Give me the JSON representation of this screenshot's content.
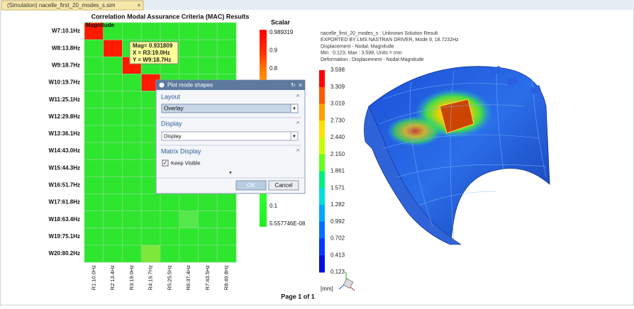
{
  "tab": {
    "title": "(Simulation) nacelle_first_20_modes_s.sim"
  },
  "mac_plot": {
    "title": "Correlation Modal Assurance Criteria (MAC) Results",
    "magnitude_label": "Magnitude",
    "rows": [
      "W7:10.1Hz",
      "W8:13.8Hz",
      "W9:18.7Hz",
      "W10:19.7Hz",
      "W11:25.1Hz",
      "W12:29.8Hz",
      "W13:36.1Hz",
      "W14:43.0Hz",
      "W15:44.3Hz",
      "W16:51.7Hz",
      "W17:61.8Hz",
      "W18:63.4Hz",
      "W19:75.1Hz",
      "W20:80.2Hz"
    ],
    "columns": [
      "R1:10.0Hz",
      "R2:13.4Hz",
      "R3:19.0Hz",
      "R4:19.7Hz",
      "R5:25.5Hz",
      "R6:37.4Hz",
      "R7:43.5Hz",
      "R8:49.8Hz"
    ],
    "tooltip": [
      "Mag= 0.931809",
      "X = R3:19.0Hz",
      "Y = W9:18.7Hz"
    ],
    "scale": {
      "title": "Scalar",
      "top_labels": [
        "0.989319",
        "0.9",
        "0.8"
      ],
      "bottom_labels": [
        "0.1",
        "5.557746E-08"
      ]
    }
  },
  "dialog": {
    "title": "Plot mode shapes",
    "layout": {
      "label": "Layout",
      "value": "Overlay"
    },
    "display": {
      "label": "Display",
      "value": "Display"
    },
    "matrix_display": {
      "label": "Matrix Display",
      "checkbox": "Keep Visible"
    },
    "ok": "OK",
    "cancel": "Cancel"
  },
  "result": {
    "header_lines": [
      "nacelle_first_20_modes_s : Unknown Solution Result",
      "EXPORTED BY LMS NASTRAN DRIVER, Mode 9, 18.7232Hz",
      "Displacement - Nodal, Magnitude",
      "Min : 0.123, Max : 3.598, Units = mm",
      "Deformation : Displacement - Nodal Magnitude"
    ],
    "legend_labels": [
      "3.598",
      "3.309",
      "3.019",
      "2.730",
      "2.440",
      "2.150",
      "1.861",
      "1.571",
      "1.282",
      "0.992",
      "0.702",
      "0.413",
      "0.123"
    ],
    "unit": "[mm]"
  },
  "footer": {
    "page": "Page 1 of 1"
  }
}
